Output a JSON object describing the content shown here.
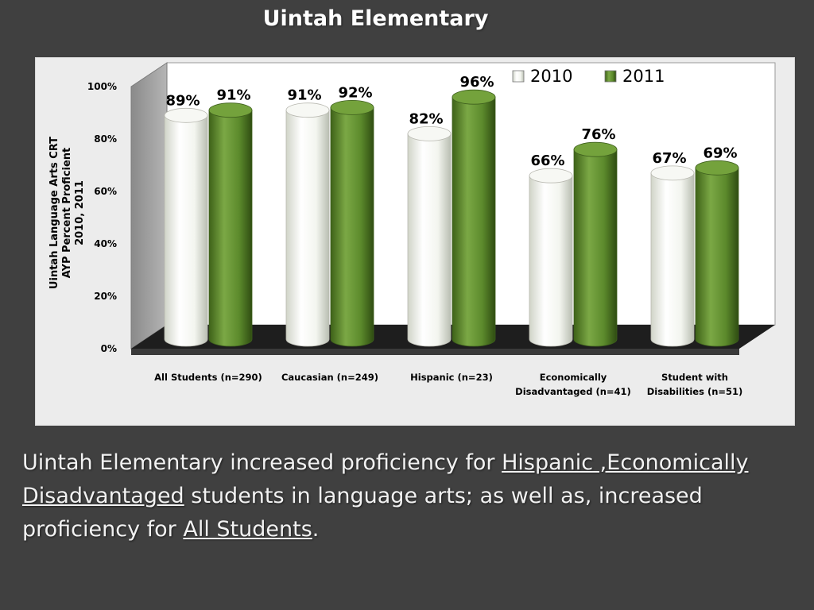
{
  "slide": {
    "title": "Uintah Elementary",
    "caption_segments": [
      {
        "text": "Uintah  Elementary increased proficiency for ",
        "underline": false
      },
      {
        "text": "Hispanic ,Economically Disadvantaged",
        "underline": true
      },
      {
        "text": " students in language arts; as well as, increased proficiency for ",
        "underline": false
      },
      {
        "text": "All Students",
        "underline": true
      },
      {
        "text": ".",
        "underline": false
      }
    ]
  },
  "chart_data": {
    "type": "bar",
    "style": "3d-cylinder",
    "ylabel_lines": [
      "Uintah Language Arts CRT",
      "AYP Percent Proficient",
      "2010, 2011"
    ],
    "ylim": [
      0,
      100
    ],
    "y_ticks": [
      "0%",
      "20%",
      "40%",
      "60%",
      "80%",
      "100%"
    ],
    "categories": [
      [
        "All Students (n=290)"
      ],
      [
        "Caucasian  (n=249)"
      ],
      [
        "Hispanic  (n=23)"
      ],
      [
        "Economically",
        "Disadvantaged  (n=41)"
      ],
      [
        "Student with",
        "Disabilities (n=51)"
      ]
    ],
    "series": [
      {
        "name": "2010",
        "values": [
          89,
          91,
          82,
          66,
          67
        ],
        "labels": [
          "89%",
          "91%",
          "82%",
          "66%",
          "67%"
        ],
        "color": "#ffffff"
      },
      {
        "name": "2011",
        "values": [
          91,
          92,
          96,
          76,
          69
        ],
        "labels": [
          "91%",
          "92%",
          "96%",
          "76%",
          "69%"
        ],
        "color": "#5f8a2e"
      }
    ],
    "legend_position": "top-right",
    "grid": false
  }
}
